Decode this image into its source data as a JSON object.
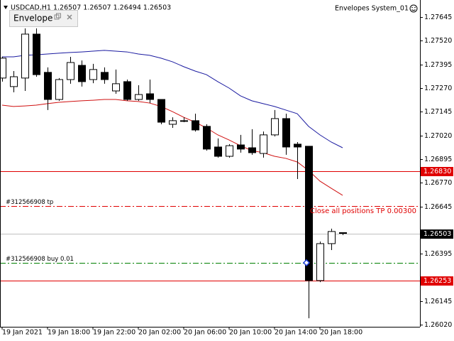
{
  "chart_data": {
    "type": "candlestick",
    "title": "USDCAD,H1  1.26507 1.26507 1.26494 1.26503",
    "indicator_label": "Envelope",
    "expert_label": "Envelopes System_01",
    "annotation": "Close all positions TP 0.00300",
    "categories": [
      "19 Jan 2021",
      null,
      null,
      null,
      "19 Jan 18:00",
      null,
      null,
      null,
      "19 Jan 22:00",
      null,
      null,
      null,
      "20 Jan 02:00",
      null,
      null,
      null,
      "20 Jan 06:00",
      null,
      null,
      null,
      "20 Jan 10:00",
      null,
      null,
      null,
      "20 Jan 14:00",
      null,
      null,
      null,
      "20 Jan 18:00",
      null,
      null
    ],
    "open": [
      1.27323,
      1.27278,
      1.27323,
      1.27555,
      1.27353,
      1.2721,
      1.27315,
      1.2739,
      1.27315,
      1.27353,
      1.27255,
      1.27304,
      1.2721,
      1.2724,
      1.2721,
      1.27079,
      1.27098,
      1.27098,
      1.27068,
      1.26959,
      1.2691,
      1.2697,
      1.26955,
      1.26925,
      1.27023,
      1.27109,
      1.26974,
      1.26963,
      1.26254,
      1.26449,
      1.26507
    ],
    "high": [
      1.27435,
      1.2736,
      1.27585,
      1.27585,
      1.27379,
      1.27323,
      1.27435,
      1.27416,
      1.27398,
      1.27379,
      1.27368,
      1.27315,
      1.27285,
      1.27315,
      1.2721,
      1.27116,
      1.27116,
      1.27135,
      1.27079,
      1.27004,
      1.26974,
      1.27023,
      1.27053,
      1.27041,
      1.27154,
      1.27135,
      1.26985,
      1.26963,
      1.2646,
      1.26528,
      1.26507
    ],
    "low": [
      1.27304,
      1.27248,
      1.27255,
      1.2733,
      1.27154,
      1.27203,
      1.27293,
      1.27278,
      1.27296,
      1.27293,
      1.2724,
      1.27203,
      1.27203,
      1.27191,
      1.27079,
      1.2706,
      1.2709,
      1.27041,
      1.2694,
      1.26903,
      1.26903,
      1.26929,
      1.26918,
      1.26903,
      1.27015,
      1.26918,
      1.2679,
      1.26055,
      1.26246,
      1.26415,
      1.26494
    ],
    "close": [
      1.27428,
      1.2733,
      1.27555,
      1.27341,
      1.2721,
      1.27315,
      1.27405,
      1.27304,
      1.27368,
      1.27315,
      1.27293,
      1.2721,
      1.27236,
      1.2721,
      1.2709,
      1.27098,
      1.27098,
      1.27049,
      1.26948,
      1.2691,
      1.26966,
      1.26948,
      1.26929,
      1.27023,
      1.27109,
      1.26959,
      1.26959,
      1.26254,
      1.26449,
      1.26513,
      1.26503
    ],
    "up_color": "#ffffff",
    "down_color": "#000000",
    "envelope_upper": {
      "color": "#1a1aa0",
      "values": [
        1.27435,
        1.27435,
        1.27443,
        1.27446,
        1.2745,
        1.27454,
        1.27458,
        1.27461,
        1.27465,
        1.27469,
        1.27465,
        1.27461,
        1.2745,
        1.27443,
        1.27428,
        1.27409,
        1.27383,
        1.2736,
        1.27341,
        1.27304,
        1.2727,
        1.27229,
        1.27203,
        1.27188,
        1.27173,
        1.27154,
        1.27135,
        1.27068,
        1.27023,
        1.26985,
        1.26955
      ]
    },
    "envelope_lower": {
      "color": "#d01010",
      "values": [
        1.2718,
        1.27173,
        1.27176,
        1.2718,
        1.27188,
        1.27195,
        1.27199,
        1.27203,
        1.27206,
        1.2721,
        1.2721,
        1.27203,
        1.27199,
        1.27191,
        1.27173,
        1.27146,
        1.27116,
        1.2709,
        1.2706,
        1.27023,
        1.26996,
        1.26966,
        1.2694,
        1.26929,
        1.2691,
        1.26899,
        1.2688,
        1.26835,
        1.26779,
        1.26741,
        1.26704
      ]
    },
    "levels": [
      {
        "value": 1.2683,
        "label": "1.26830",
        "color": "#e00000",
        "tag_color": "#e00000",
        "style": "solid"
      },
      {
        "value": 1.26503,
        "label": "1.26503",
        "color": "#c0c0c0",
        "tag_color": "#000000",
        "style": "solid"
      },
      {
        "value": 1.26253,
        "label": "1.26253",
        "color": "#e00000",
        "tag_color": "#e00000",
        "style": "solid"
      },
      {
        "value": 1.26648,
        "text": "#312566908 tp",
        "color": "#e00000",
        "style": "dashdot"
      },
      {
        "value": 1.26348,
        "text": "#312566908 buy 0.01",
        "color": "#008000",
        "style": "dashdot",
        "marker": true
      }
    ],
    "ylim": [
      1.2601,
      1.27735
    ],
    "yticks": [
      1.27645,
      {
        "value": 1.2752,
        "label": "1.27520"
      },
      1.27395,
      {
        "value": 1.2727,
        "label": "1.27270"
      },
      1.27145,
      {
        "value": 1.2702,
        "label": "1.27020"
      },
      1.26895,
      {
        "value": 1.2677,
        "label": "1.26770"
      },
      1.26645,
      1.26395,
      1.26145,
      {
        "value": 1.2602,
        "label": "1.26020"
      }
    ]
  }
}
